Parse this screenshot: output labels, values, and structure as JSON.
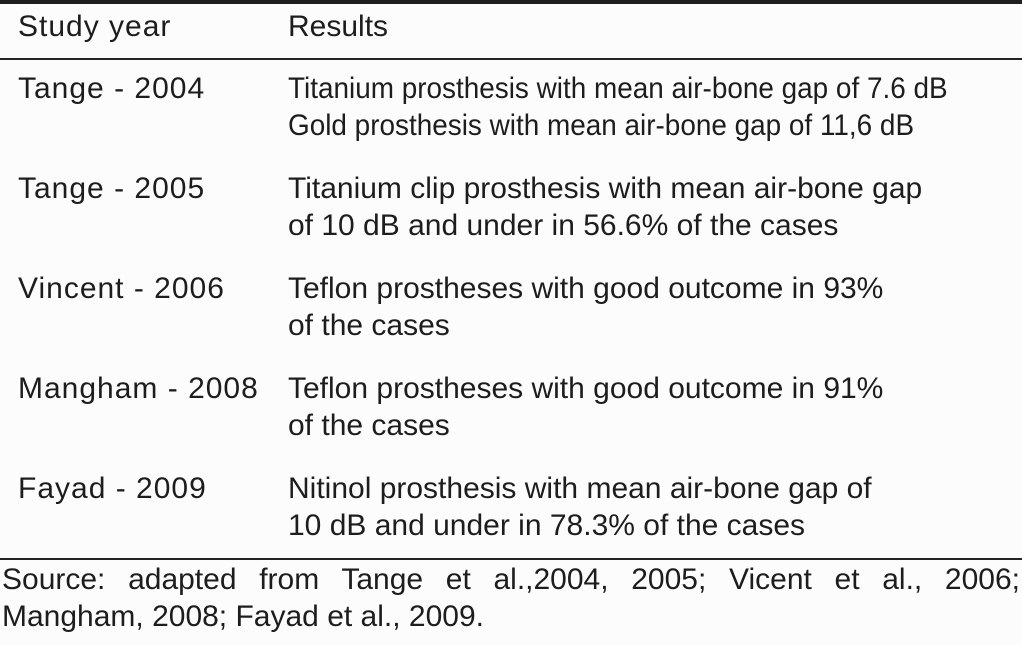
{
  "figure": {
    "kind": "study-results-table"
  },
  "table": {
    "headers": [
      "Study year",
      "Results"
    ],
    "rows": [
      {
        "study": "Tange - 2004",
        "result_lines": [
          "Titanium prosthesis with mean air-bone gap of 7.6 dB",
          "Gold prosthesis with mean air-bone gap of 11,6 dB"
        ]
      },
      {
        "study": "Tange - 2005",
        "result_lines": [
          "Titanium clip prosthesis with mean air-bone gap",
          "of 10 dB and under in 56.6% of the cases"
        ]
      },
      {
        "study": "Vincent - 2006",
        "result_lines": [
          "Teflon prostheses with good outcome in 93%",
          "of the cases"
        ]
      },
      {
        "study": "Mangham - 2008",
        "result_lines": [
          "Teflon prostheses with good outcome in 91%",
          "of the cases"
        ]
      },
      {
        "study": "Fayad - 2009",
        "result_lines": [
          "Nitinol prosthesis with mean air-bone gap of",
          "10 dB and under in 78.3% of the cases"
        ]
      }
    ]
  },
  "source": {
    "lines": [
      "Source: adapted from Tange et al.,2004, 2005; Vicent et al., 2006;",
      "Mangham, 2008; Fayad et al., 2009."
    ]
  },
  "colors": {
    "text": "#1d1d1d",
    "rule": "#242424",
    "background": "#fcfcfc"
  }
}
